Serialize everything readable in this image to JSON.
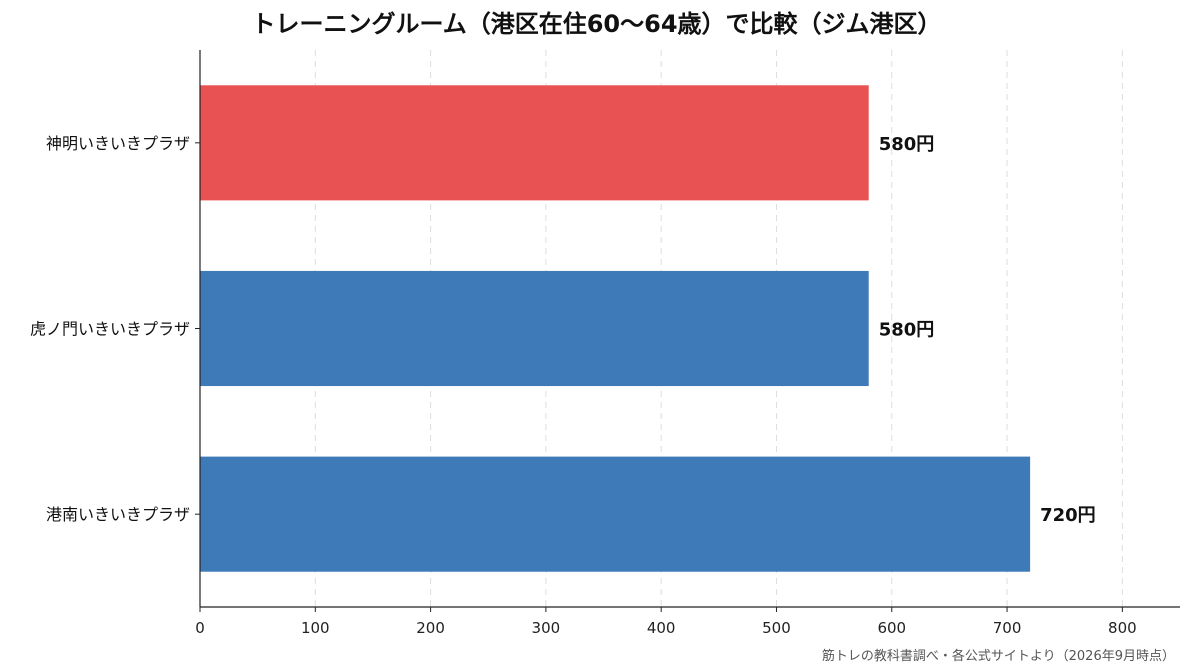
{
  "chart_data": {
    "type": "bar",
    "orientation": "horizontal",
    "title": "トレーニングルーム（港区在住60〜64歳）で比較（ジム港区）",
    "categories": [
      "神明いきいきプラザ",
      "虎ノ門いきいきプラザ",
      "港南いきいきプラザ"
    ],
    "values": [
      580,
      580,
      720
    ],
    "data_labels": [
      "580円",
      "580円",
      "720円"
    ],
    "bar_colors": [
      "#e85252",
      "#3f7ab8",
      "#3f7ab8"
    ],
    "xlim": [
      0,
      850
    ],
    "xticks": [
      0,
      100,
      200,
      300,
      400,
      500,
      600,
      700,
      800
    ],
    "xlabel": "",
    "ylabel": "",
    "grid": "x-dashed"
  },
  "source_note": "筋トレの教科書調べ・各公式サイトより（2026年9月時点）"
}
